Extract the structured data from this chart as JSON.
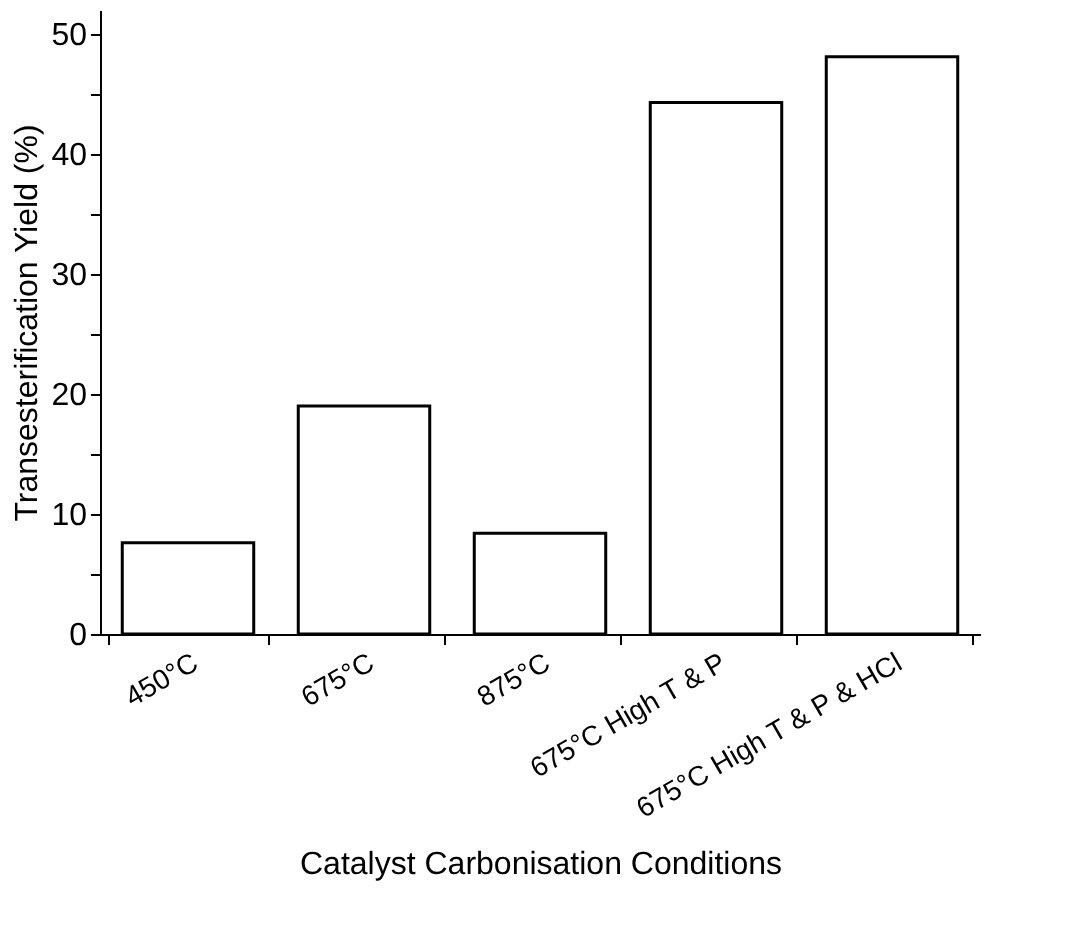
{
  "chart_data": {
    "type": "bar",
    "xlabel": "Catalyst Carbonisation Conditions",
    "ylabel": "Transesterification Yield (%)",
    "categories": [
      "450°C",
      "675°C",
      "875°C",
      "675°C High T & P",
      "675°C High T & P & HCl"
    ],
    "values": [
      7.6,
      19.0,
      8.4,
      44.3,
      48.1
    ],
    "color": "#ffffff",
    "ylim": [
      0,
      52
    ],
    "yticks": [
      0,
      {
        "value": 5,
        "label": null
      },
      10,
      {
        "value": 15,
        "label": null
      },
      20,
      {
        "value": 25,
        "label": null
      },
      30,
      {
        "value": 35,
        "label": null
      },
      40,
      {
        "value": 45,
        "label": null
      },
      50
    ],
    "grid": false
  }
}
